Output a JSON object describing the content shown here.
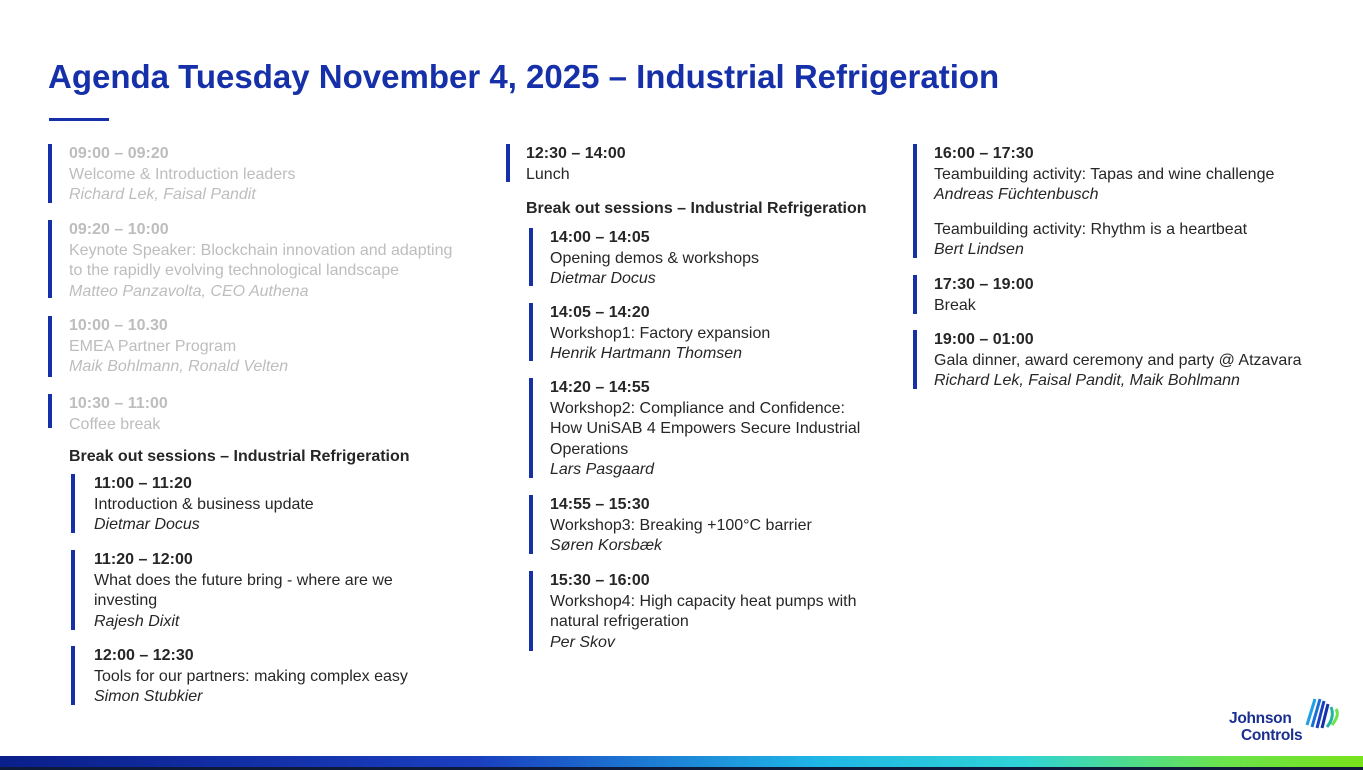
{
  "title": "Agenda Tuesday November 4, 2025 – Industrial Refrigeration",
  "colors": {
    "accent": "#1530a8",
    "muted_text": "#bdbdbd",
    "text": "#262626"
  },
  "logo": {
    "line1": "Johnson",
    "line2": "Controls"
  },
  "column1": {
    "items": [
      {
        "time": "09:00 – 09:20",
        "lines": [
          "Welcome & Introduction leaders"
        ],
        "speaker": "Richard Lek, Faisal Pandit",
        "muted": true
      },
      {
        "time": "09:20 – 10:00",
        "lines": [
          "Keynote Speaker: Blockchain innovation and adapting",
          "to the rapidly evolving technological landscape"
        ],
        "speaker": "Matteo Panzavolta, CEO Authena",
        "muted": true
      },
      {
        "time": "10:00 – 10.30",
        "lines": [
          "EMEA Partner Program"
        ],
        "speaker": "Maik Bohlmann, Ronald Velten",
        "muted": true
      },
      {
        "time": "10:30 – 11:00",
        "lines": [
          "Coffee break"
        ],
        "muted": true
      }
    ],
    "breakout_heading": "Break out sessions – Industrial Refrigeration",
    "breakout": [
      {
        "time": "11:00 – 11:20",
        "lines": [
          "Introduction & business update"
        ],
        "speaker": "Dietmar Docus"
      },
      {
        "time": "11:20 – 12:00",
        "lines": [
          "What does the future bring - where are we",
          "investing"
        ],
        "speaker": "Rajesh Dixit"
      },
      {
        "time": "12:00 – 12:30",
        "lines": [
          "Tools for our partners: making complex easy"
        ],
        "speaker": "Simon Stubkier"
      }
    ]
  },
  "column2": {
    "items": [
      {
        "time": "12:30 – 14:00",
        "lines": [
          "Lunch"
        ]
      }
    ],
    "breakout_heading": "Break out sessions – Industrial Refrigeration",
    "breakout": [
      {
        "time": "14:00 – 14:05",
        "lines": [
          "Opening demos & workshops"
        ],
        "speaker": "Dietmar Docus"
      },
      {
        "time": "14:05 – 14:20",
        "lines": [
          "Workshop1: Factory expansion"
        ],
        "speaker": "Henrik Hartmann Thomsen"
      },
      {
        "time": "14:20 – 14:55",
        "lines": [
          "Workshop2: Compliance and Confidence:",
          "How UniSAB 4 Empowers Secure Industrial",
          "Operations"
        ],
        "speaker": "Lars Pasgaard"
      },
      {
        "time": "14:55 – 15:30",
        "lines": [
          "Workshop3: Breaking +100°C barrier"
        ],
        "speaker": "Søren Korsbæk"
      },
      {
        "time": "15:30 – 16:00",
        "lines": [
          "Workshop4: High capacity heat pumps with",
          "natural refrigeration"
        ],
        "speaker": "Per Skov"
      }
    ]
  },
  "column3": {
    "items": [
      {
        "time": "16:00 – 17:30",
        "lines": [
          "Teambuilding activity: Tapas and wine challenge"
        ],
        "speaker": "Andreas Füchtenbusch",
        "extra_lines": [
          "Teambuilding activity: Rhythm is a heartbeat"
        ],
        "extra_speaker": "Bert Lindsen"
      },
      {
        "time": "17:30 – 19:00",
        "lines": [
          "Break"
        ]
      },
      {
        "time": "19:00 – 01:00",
        "lines": [
          "Gala dinner, award ceremony and party @ Atzavara"
        ],
        "speaker": "Richard Lek, Faisal Pandit, Maik Bohlmann"
      }
    ]
  }
}
